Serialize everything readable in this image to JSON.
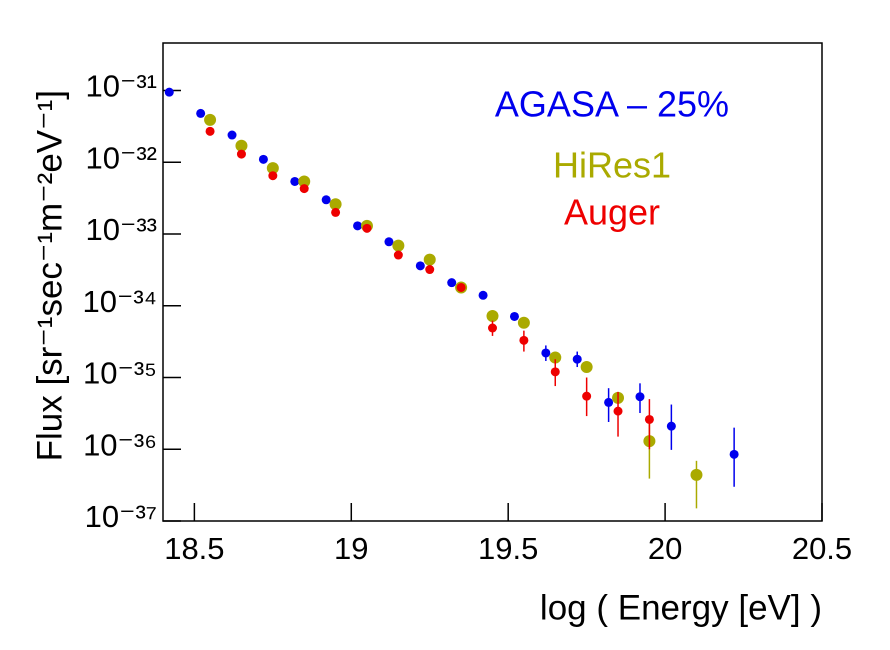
{
  "chart_data": {
    "type": "scatter",
    "x_label": "log ( Energy  [eV] )",
    "y_label": "Flux  [sr⁻¹sec⁻¹m⁻²eV⁻¹]",
    "xlim": [
      18.4,
      20.5
    ],
    "xticks": [
      18.5,
      19,
      19.5,
      20,
      20.5
    ],
    "ylim": [
      1e-37,
      4.6e-31
    ],
    "yticks": [
      {
        "value": 1e-37,
        "label": "10⁻³⁷"
      },
      {
        "value": 1e-36,
        "label": "10⁻³⁶"
      },
      {
        "value": 1e-35,
        "label": "10⁻³⁵"
      },
      {
        "value": 1e-34,
        "label": "10⁻³⁴"
      },
      {
        "value": 1e-33,
        "label": "10⁻³³"
      },
      {
        "value": 1e-32,
        "label": "10⁻³²"
      },
      {
        "value": 1e-31,
        "label": "10⁻³¹"
      }
    ],
    "log_y": true,
    "grid": false,
    "legend_position": "top right",
    "series": [
      {
        "name": "AGASA – 25%",
        "color": "#0000ee",
        "x": [
          18.42,
          18.52,
          18.62,
          18.72,
          18.82,
          18.92,
          19.02,
          19.12,
          19.22,
          19.32,
          19.42,
          19.52,
          19.62,
          19.72,
          19.82,
          19.92,
          20.02,
          20.22
        ],
        "values": [
          9.5e-32,
          4.8e-32,
          2.4e-32,
          1.1e-32,
          5.4e-33,
          3e-33,
          1.3e-33,
          7.8e-34,
          3.6e-34,
          2.1e-34,
          1.4e-34,
          7.1e-35,
          2.2e-35,
          1.8e-35,
          4.5e-36,
          5.4e-36,
          2.1e-36,
          8.5e-37
        ],
        "lower": [
          null,
          null,
          null,
          null,
          null,
          null,
          null,
          null,
          null,
          null,
          null,
          null,
          1.7e-35,
          1.4e-35,
          2.4e-36,
          3.2e-36,
          9.8e-37,
          3e-37
        ],
        "upper": [
          null,
          null,
          null,
          null,
          null,
          null,
          null,
          null,
          null,
          null,
          null,
          null,
          2.8e-35,
          2.3e-35,
          7.1e-36,
          8.3e-36,
          4.2e-36,
          2e-36
        ]
      },
      {
        "name": "HiRes1",
        "color": "#aaaa00",
        "x": [
          18.55,
          18.65,
          18.75,
          18.85,
          18.95,
          19.05,
          19.15,
          19.25,
          19.35,
          19.45,
          19.55,
          19.65,
          19.75,
          19.85,
          19.95,
          20.1
        ],
        "values": [
          3.9e-32,
          1.7e-32,
          8.3e-33,
          5.4e-33,
          2.6e-33,
          1.3e-33,
          6.9e-34,
          4.4e-34,
          1.8e-34,
          7.2e-35,
          5.8e-35,
          1.9e-35,
          1.4e-35,
          5.2e-36,
          1.3e-36,
          4.4e-37
        ],
        "lower": [
          null,
          null,
          null,
          null,
          null,
          null,
          null,
          null,
          null,
          null,
          null,
          null,
          null,
          null,
          3.9e-37,
          1.5e-37
        ],
        "upper": [
          null,
          null,
          null,
          null,
          null,
          null,
          null,
          null,
          null,
          null,
          null,
          null,
          null,
          null,
          2.8e-36,
          6.9e-37
        ]
      },
      {
        "name": "Auger",
        "color": "#ee0000",
        "x": [
          18.55,
          18.65,
          18.75,
          18.85,
          18.95,
          19.05,
          19.15,
          19.25,
          19.35,
          19.45,
          19.55,
          19.65,
          19.75,
          19.85,
          19.95
        ],
        "values": [
          2.7e-32,
          1.3e-32,
          6.5e-33,
          4.3e-33,
          2e-33,
          1.2e-33,
          5.1e-34,
          3.2e-34,
          1.8e-34,
          4.9e-35,
          3.3e-35,
          1.2e-35,
          5.5e-36,
          3.4e-36,
          2.6e-36
        ],
        "lower": [
          null,
          null,
          null,
          null,
          null,
          null,
          null,
          null,
          null,
          3.8e-35,
          2.3e-35,
          7.6e-36,
          2.9e-36,
          1.5e-36,
          1e-36
        ],
        "upper": [
          null,
          null,
          null,
          null,
          null,
          null,
          null,
          null,
          null,
          6.2e-35,
          4.5e-35,
          1.8e-35,
          1e-35,
          6.3e-36,
          5e-36
        ]
      }
    ]
  }
}
